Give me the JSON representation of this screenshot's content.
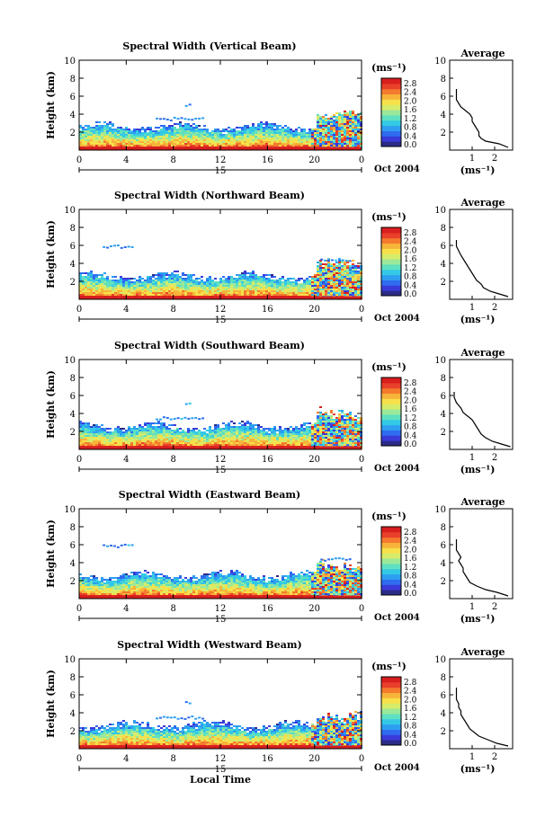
{
  "figure": {
    "date_label": "Oct 2004",
    "day_label": "15",
    "time_label": "Local Time",
    "y_axis_label": "Height (km)",
    "colorbar_unit": "(ms⁻¹)",
    "average_title": "Average",
    "average_xlabel": "(ms⁻¹)"
  },
  "colorbar": {
    "ticks": [
      "2.8",
      "2.4",
      "2.0",
      "1.6",
      "1.2",
      "0.8",
      "0.4",
      "0.0"
    ],
    "colors": [
      "#2b2b88",
      "#3a3ad8",
      "#2f6cf0",
      "#2e9ff0",
      "#33c9e6",
      "#5fe0c0",
      "#9be89a",
      "#d6ec6a",
      "#f7e04a",
      "#f7b43a",
      "#f47a2e",
      "#e8402a",
      "#d81e1e"
    ]
  },
  "chart_data": [
    {
      "type": "heatmap",
      "title": "Spectral Width (Vertical Beam)",
      "xlabel": "",
      "ylabel": "Height (km)",
      "xlim": [
        0,
        24
      ],
      "ylim": [
        0,
        10
      ],
      "xticks": [
        "0",
        "4",
        "8",
        "12",
        "16",
        "20",
        "0"
      ],
      "yticks": [
        "2",
        "4",
        "6",
        "8",
        "10"
      ],
      "average": {
        "title": "Average",
        "xlabel": "(ms⁻¹)",
        "xticks": [
          "1",
          "2"
        ],
        "xlim": [
          0,
          2.8
        ],
        "ylim": [
          0,
          10
        ],
        "profile": [
          [
            2.6,
            0.3
          ],
          [
            2.2,
            0.7
          ],
          [
            1.6,
            1.0
          ],
          [
            1.4,
            1.3
          ],
          [
            1.3,
            1.6
          ],
          [
            1.3,
            2.0
          ],
          [
            1.2,
            2.4
          ],
          [
            1.1,
            2.8
          ],
          [
            1.0,
            3.2
          ],
          [
            1.0,
            3.6
          ],
          [
            0.9,
            4.0
          ],
          [
            0.7,
            4.4
          ],
          [
            0.5,
            4.8
          ],
          [
            0.4,
            5.2
          ],
          [
            0.3,
            5.6
          ],
          [
            0.3,
            6.0
          ],
          [
            0.3,
            6.8
          ]
        ]
      }
    },
    {
      "type": "heatmap",
      "title": "Spectral Width (Northward Beam)",
      "xlabel": "",
      "ylabel": "Height (km)",
      "xlim": [
        0,
        24
      ],
      "ylim": [
        0,
        10
      ],
      "xticks": [
        "0",
        "4",
        "8",
        "12",
        "16",
        "20",
        "0"
      ],
      "yticks": [
        "2",
        "4",
        "6",
        "8",
        "10"
      ],
      "average": {
        "title": "Average",
        "xlabel": "(ms⁻¹)",
        "xticks": [
          "1",
          "2"
        ],
        "xlim": [
          0,
          2.8
        ],
        "ylim": [
          0,
          10
        ],
        "profile": [
          [
            2.6,
            0.3
          ],
          [
            2.2,
            0.6
          ],
          [
            1.8,
            0.9
          ],
          [
            1.5,
            1.3
          ],
          [
            1.4,
            1.7
          ],
          [
            1.2,
            2.1
          ],
          [
            1.1,
            2.5
          ],
          [
            1.0,
            2.9
          ],
          [
            0.9,
            3.3
          ],
          [
            0.8,
            3.7
          ],
          [
            0.7,
            4.1
          ],
          [
            0.6,
            4.5
          ],
          [
            0.5,
            4.9
          ],
          [
            0.4,
            5.4
          ],
          [
            0.3,
            5.9
          ],
          [
            0.3,
            6.6
          ]
        ]
      }
    },
    {
      "type": "heatmap",
      "title": "Spectral Width (Southward Beam)",
      "xlabel": "",
      "ylabel": "Height (km)",
      "xlim": [
        0,
        24
      ],
      "ylim": [
        0,
        10
      ],
      "xticks": [
        "0",
        "4",
        "8",
        "12",
        "16",
        "20",
        "0"
      ],
      "yticks": [
        "2",
        "4",
        "6",
        "8",
        "10"
      ],
      "average": {
        "title": "Average",
        "xlabel": "(ms⁻¹)",
        "xticks": [
          "1",
          "2"
        ],
        "xlim": [
          0,
          2.8
        ],
        "ylim": [
          0,
          10
        ],
        "profile": [
          [
            2.7,
            0.3
          ],
          [
            2.3,
            0.6
          ],
          [
            1.9,
            0.9
          ],
          [
            1.6,
            1.3
          ],
          [
            1.4,
            1.7
          ],
          [
            1.3,
            2.1
          ],
          [
            1.2,
            2.5
          ],
          [
            1.1,
            2.9
          ],
          [
            1.0,
            3.3
          ],
          [
            0.8,
            3.7
          ],
          [
            0.6,
            4.1
          ],
          [
            0.5,
            4.6
          ],
          [
            0.3,
            5.2
          ],
          [
            0.2,
            5.8
          ],
          [
            0.2,
            6.4
          ]
        ]
      }
    },
    {
      "type": "heatmap",
      "title": "Spectral Width (Eastward Beam)",
      "xlabel": "",
      "ylabel": "Height (km)",
      "xlim": [
        0,
        24
      ],
      "ylim": [
        0,
        10
      ],
      "xticks": [
        "0",
        "4",
        "8",
        "12",
        "16",
        "20",
        "0"
      ],
      "yticks": [
        "2",
        "4",
        "6",
        "8",
        "10"
      ],
      "average": {
        "title": "Average",
        "xlabel": "(ms⁻¹)",
        "xticks": [
          "1",
          "2"
        ],
        "xlim": [
          0,
          2.8
        ],
        "ylim": [
          0,
          10
        ],
        "profile": [
          [
            2.6,
            0.3
          ],
          [
            2.1,
            0.7
          ],
          [
            1.6,
            1.0
          ],
          [
            1.2,
            1.4
          ],
          [
            0.9,
            1.8
          ],
          [
            0.8,
            2.2
          ],
          [
            0.7,
            2.6
          ],
          [
            0.6,
            3.0
          ],
          [
            0.6,
            3.4
          ],
          [
            0.5,
            3.8
          ],
          [
            0.4,
            4.2
          ],
          [
            0.5,
            4.6
          ],
          [
            0.4,
            5.0
          ],
          [
            0.3,
            5.4
          ],
          [
            0.3,
            5.9
          ],
          [
            0.3,
            6.6
          ]
        ]
      }
    },
    {
      "type": "heatmap",
      "title": "Spectral Width (Westward Beam)",
      "xlabel": "Local Time",
      "ylabel": "Height (km)",
      "xlim": [
        0,
        24
      ],
      "ylim": [
        0,
        10
      ],
      "xticks": [
        "0",
        "4",
        "8",
        "12",
        "16",
        "20",
        "0"
      ],
      "yticks": [
        "2",
        "4",
        "6",
        "8",
        "10"
      ],
      "average": {
        "title": "Average",
        "xlabel": "(ms⁻¹)",
        "xticks": [
          "1",
          "2"
        ],
        "xlim": [
          0,
          2.8
        ],
        "ylim": [
          0,
          10
        ],
        "profile": [
          [
            2.6,
            0.3
          ],
          [
            2.1,
            0.6
          ],
          [
            1.7,
            1.0
          ],
          [
            1.3,
            1.4
          ],
          [
            1.1,
            1.8
          ],
          [
            0.9,
            2.2
          ],
          [
            0.8,
            2.6
          ],
          [
            0.7,
            3.0
          ],
          [
            0.6,
            3.4
          ],
          [
            0.5,
            3.8
          ],
          [
            0.5,
            4.2
          ],
          [
            0.4,
            4.6
          ],
          [
            0.4,
            5.0
          ],
          [
            0.3,
            5.5
          ],
          [
            0.3,
            6.0
          ],
          [
            0.3,
            6.8
          ]
        ]
      }
    }
  ]
}
